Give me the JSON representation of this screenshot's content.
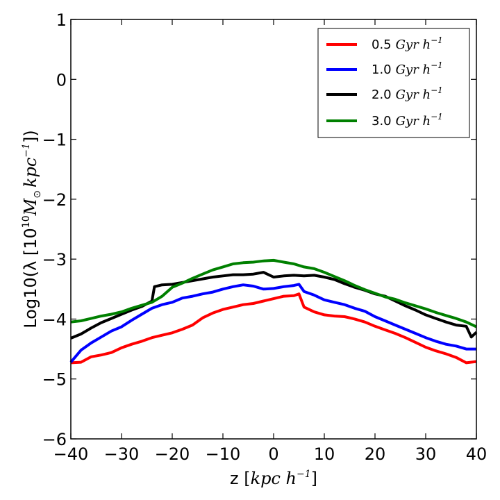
{
  "chart_data": {
    "type": "line",
    "title": "",
    "xlabel": {
      "prefix": "z [",
      "math": "kpc h",
      "sup": "−1",
      "suffix": "]"
    },
    "ylabel": {
      "prefix": "Log10(λ [10",
      "sup1": "10",
      "math1": "M",
      "sub": "⊙",
      "math2": "kpc",
      "sup2": "−1",
      "suffix": "])"
    },
    "xlim": [
      -40,
      40
    ],
    "ylim": [
      -6,
      1
    ],
    "xticks": [
      -40,
      -30,
      -20,
      -10,
      0,
      10,
      20,
      30,
      40
    ],
    "yticks": [
      -6,
      -5,
      -4,
      -3,
      -2,
      -1,
      0,
      1
    ],
    "xtick_labels": [
      "−40",
      "−30",
      "−20",
      "−10",
      "0",
      "10",
      "20",
      "30",
      "40"
    ],
    "ytick_labels": [
      "−6",
      "−5",
      "−4",
      "−3",
      "−2",
      "−1",
      "0",
      "1"
    ],
    "grid": false,
    "legend_position": "top-right",
    "series": [
      {
        "name": "0.5 Gyr h−1",
        "label_num": "0.5",
        "label_math": "Gyr h",
        "label_sup": "−1",
        "color": "#ff0000",
        "x": [
          -40,
          -38,
          -36,
          -34,
          -32,
          -30,
          -28,
          -26,
          -24,
          -22,
          -20,
          -18,
          -16,
          -14,
          -12,
          -10,
          -8,
          -6,
          -4,
          -2,
          0,
          2,
          4,
          5,
          6,
          8,
          10,
          12,
          14,
          16,
          18,
          20,
          22,
          24,
          26,
          28,
          30,
          32,
          34,
          36,
          38,
          40
        ],
        "y": [
          -4.73,
          -4.72,
          -4.63,
          -4.6,
          -4.56,
          -4.48,
          -4.42,
          -4.37,
          -4.31,
          -4.27,
          -4.23,
          -4.17,
          -4.1,
          -3.98,
          -3.9,
          -3.84,
          -3.8,
          -3.76,
          -3.74,
          -3.7,
          -3.66,
          -3.62,
          -3.61,
          -3.58,
          -3.8,
          -3.88,
          -3.93,
          -3.95,
          -3.96,
          -4.0,
          -4.05,
          -4.12,
          -4.18,
          -4.24,
          -4.31,
          -4.39,
          -4.47,
          -4.53,
          -4.58,
          -4.64,
          -4.73,
          -4.71
        ]
      },
      {
        "name": "1.0 Gyr h−1",
        "label_num": "1.0",
        "label_math": "Gyr h",
        "label_sup": "−1",
        "color": "#0000ff",
        "x": [
          -40,
          -38,
          -36,
          -34,
          -32,
          -30,
          -28,
          -26,
          -24,
          -22,
          -20,
          -18,
          -16,
          -14,
          -12,
          -10,
          -8,
          -6,
          -4,
          -2,
          0,
          2,
          4,
          5,
          6,
          8,
          10,
          12,
          14,
          16,
          18,
          20,
          22,
          24,
          26,
          28,
          30,
          32,
          34,
          36,
          38,
          40
        ],
        "y": [
          -4.72,
          -4.52,
          -4.4,
          -4.3,
          -4.2,
          -4.13,
          -4.02,
          -3.92,
          -3.82,
          -3.76,
          -3.72,
          -3.65,
          -3.62,
          -3.58,
          -3.55,
          -3.5,
          -3.46,
          -3.43,
          -3.45,
          -3.5,
          -3.49,
          -3.46,
          -3.44,
          -3.42,
          -3.54,
          -3.6,
          -3.68,
          -3.72,
          -3.76,
          -3.82,
          -3.87,
          -3.96,
          -4.03,
          -4.1,
          -4.17,
          -4.24,
          -4.31,
          -4.37,
          -4.42,
          -4.45,
          -4.5,
          -4.5
        ]
      },
      {
        "name": "2.0 Gyr h−1",
        "label_num": "2.0",
        "label_math": "Gyr h",
        "label_sup": "−1",
        "color": "#000000",
        "x": [
          -40,
          -38,
          -36,
          -34,
          -32,
          -30,
          -28,
          -26,
          -24,
          -23.5,
          -22,
          -20,
          -18,
          -16,
          -14,
          -12,
          -10,
          -8,
          -6,
          -4,
          -2,
          0,
          2,
          4,
          6,
          8,
          10,
          12,
          14,
          16,
          18,
          20,
          22,
          24,
          26,
          28,
          30,
          32,
          34,
          36,
          38,
          39,
          40
        ],
        "y": [
          -4.32,
          -4.25,
          -4.15,
          -4.06,
          -3.99,
          -3.92,
          -3.85,
          -3.79,
          -3.7,
          -3.46,
          -3.43,
          -3.42,
          -3.39,
          -3.36,
          -3.33,
          -3.3,
          -3.28,
          -3.26,
          -3.26,
          -3.25,
          -3.22,
          -3.3,
          -3.28,
          -3.27,
          -3.28,
          -3.27,
          -3.3,
          -3.34,
          -3.41,
          -3.47,
          -3.52,
          -3.58,
          -3.62,
          -3.7,
          -3.78,
          -3.85,
          -3.93,
          -3.99,
          -4.05,
          -4.1,
          -4.12,
          -4.3,
          -4.22
        ]
      },
      {
        "name": "3.0 Gyr h−1",
        "label_num": "3.0",
        "label_math": "Gyr h",
        "label_sup": "−1",
        "color": "#008000",
        "x": [
          -40,
          -38,
          -36,
          -34,
          -32,
          -30,
          -28,
          -26,
          -24,
          -22,
          -20,
          -18,
          -16,
          -14,
          -12,
          -10,
          -8,
          -6,
          -4,
          -2,
          0,
          2,
          4,
          6,
          8,
          10,
          12,
          14,
          16,
          18,
          20,
          22,
          24,
          26,
          28,
          30,
          32,
          34,
          36,
          38,
          40
        ],
        "y": [
          -4.05,
          -4.03,
          -3.99,
          -3.95,
          -3.92,
          -3.88,
          -3.82,
          -3.77,
          -3.72,
          -3.62,
          -3.47,
          -3.4,
          -3.32,
          -3.25,
          -3.18,
          -3.13,
          -3.08,
          -3.06,
          -3.05,
          -3.03,
          -3.02,
          -3.05,
          -3.08,
          -3.13,
          -3.16,
          -3.22,
          -3.29,
          -3.36,
          -3.44,
          -3.51,
          -3.57,
          -3.63,
          -3.67,
          -3.73,
          -3.78,
          -3.83,
          -3.89,
          -3.94,
          -3.99,
          -4.05,
          -4.13
        ]
      }
    ]
  }
}
